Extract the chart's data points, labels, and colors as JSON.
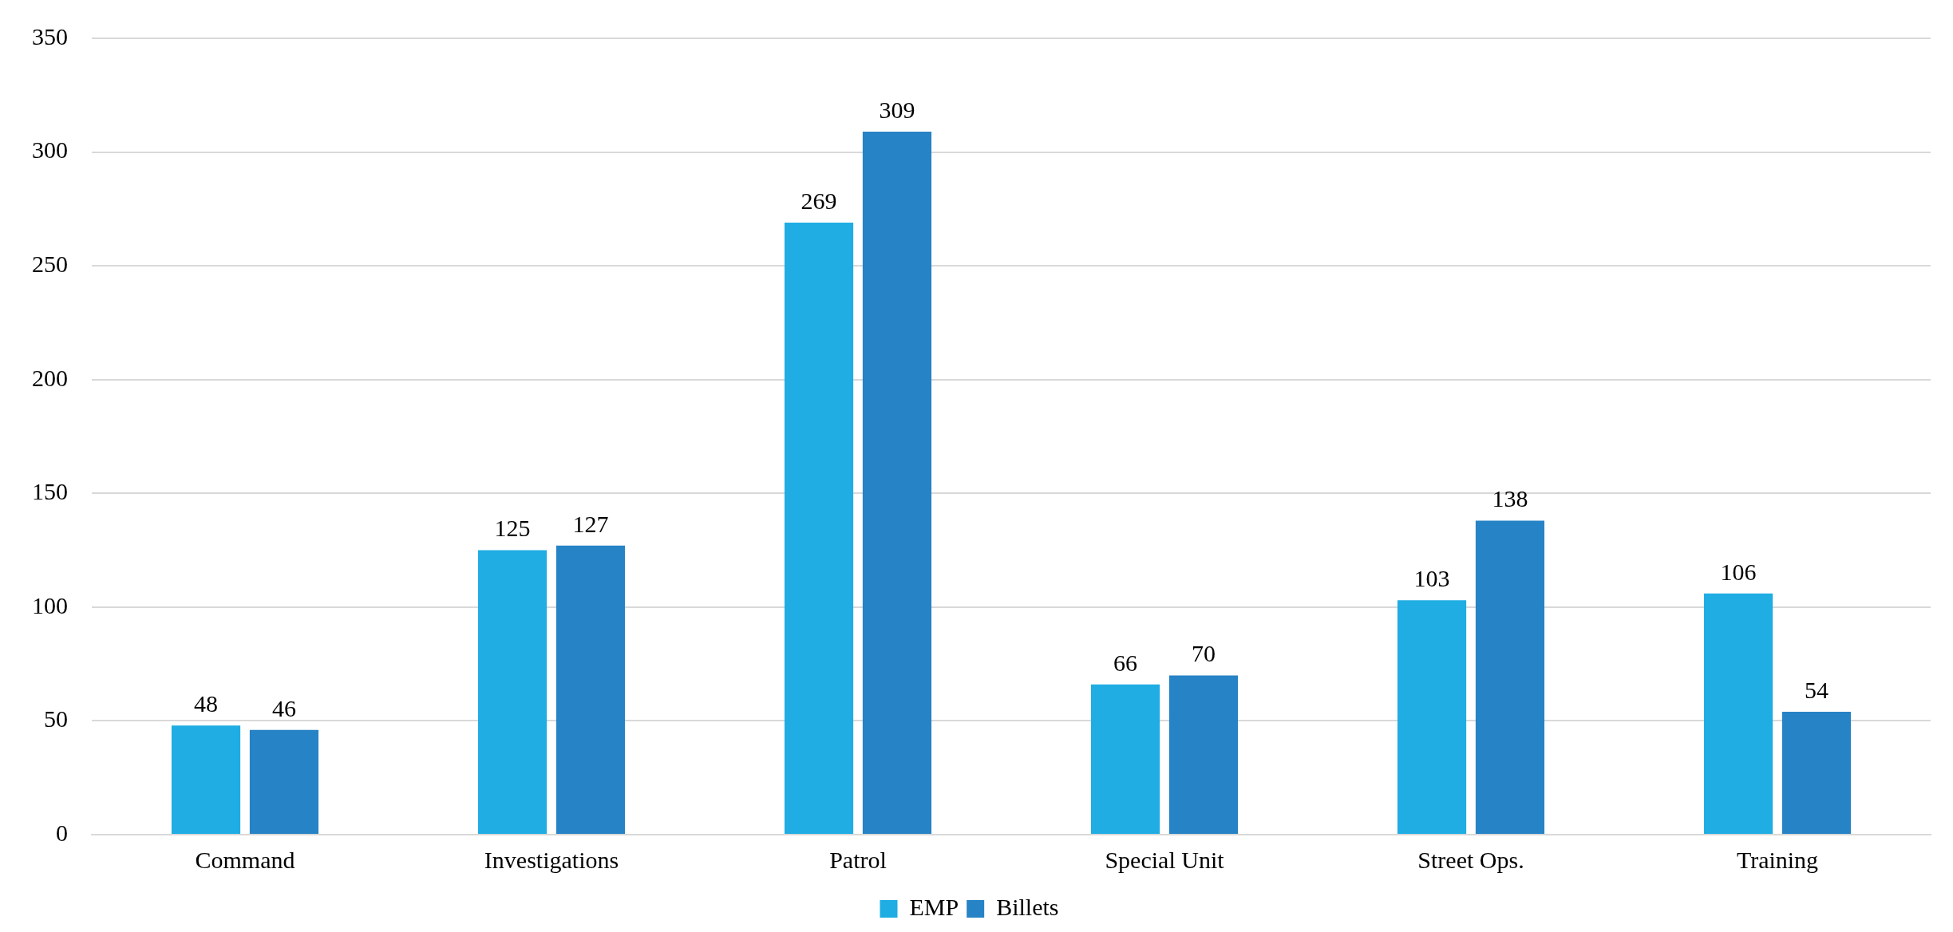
{
  "chart_data": {
    "type": "bar",
    "categories": [
      "Command",
      "Investigations",
      "Patrol",
      "Special Unit",
      "Street Ops.",
      "Training"
    ],
    "series": [
      {
        "name": "EMP",
        "color": "#1fade3",
        "values": [
          48,
          125,
          269,
          66,
          103,
          106
        ]
      },
      {
        "name": "Billets",
        "color": "#2683c6",
        "values": [
          46,
          127,
          309,
          70,
          138,
          54
        ]
      }
    ],
    "ylim": [
      0,
      350
    ],
    "yticks": [
      0,
      50,
      100,
      150,
      200,
      250,
      300,
      350
    ],
    "grid": "y",
    "legend": "bottom",
    "data_labels": true
  }
}
